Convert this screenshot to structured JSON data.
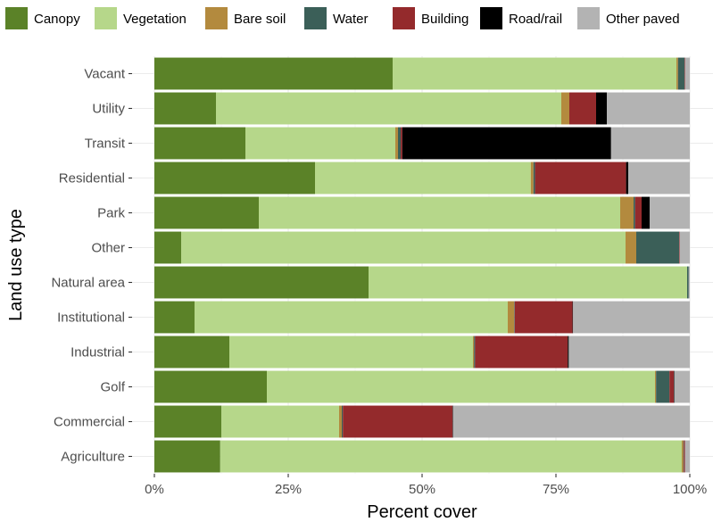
{
  "chart_data": {
    "type": "bar",
    "orientation": "horizontal",
    "stacked": true,
    "title": "",
    "xlabel": "Percent cover",
    "ylabel": "Land use type",
    "xlim": [
      0,
      100
    ],
    "x_ticks": [
      0,
      25,
      50,
      75,
      100
    ],
    "x_tick_labels": [
      "0%",
      "25%",
      "50%",
      "75%",
      "100%"
    ],
    "grid": true,
    "legend_position": "top",
    "categories": [
      "Vacant",
      "Utility",
      "Transit",
      "Residential",
      "Park",
      "Other",
      "Natural area",
      "Institutional",
      "Industrial",
      "Golf",
      "Commercial",
      "Agriculture"
    ],
    "series": [
      {
        "name": "Canopy",
        "color": "#5b8228",
        "values": [
          44.5,
          11.5,
          17.0,
          30.0,
          19.5,
          5.0,
          40.0,
          7.5,
          14.0,
          21.0,
          12.5,
          12.3
        ]
      },
      {
        "name": "Vegetation",
        "color": "#b6d78a",
        "values": [
          53.0,
          64.5,
          28.0,
          40.3,
          67.5,
          83.0,
          59.5,
          58.5,
          45.5,
          72.5,
          22.0,
          86.2
        ]
      },
      {
        "name": "Bare soil",
        "color": "#b38a3e",
        "values": [
          0.3,
          1.5,
          0.5,
          0.5,
          2.5,
          2.0,
          0.0,
          1.2,
          0.2,
          0.2,
          0.5,
          0.3
        ]
      },
      {
        "name": "Water",
        "color": "#3b5f58",
        "values": [
          1.2,
          0.0,
          0.5,
          0.3,
          0.3,
          8.0,
          0.3,
          0.1,
          0.2,
          2.5,
          0.2,
          0.1
        ]
      },
      {
        "name": "Building",
        "color": "#942a2c",
        "values": [
          0.1,
          5.0,
          0.3,
          17.0,
          1.2,
          0.1,
          0.0,
          10.8,
          17.3,
          0.8,
          20.5,
          0.2
        ]
      },
      {
        "name": "Road/rail",
        "color": "#000000",
        "values": [
          0.0,
          2.0,
          39.0,
          0.4,
          1.5,
          0.0,
          0.0,
          0.1,
          0.2,
          0.1,
          0.1,
          0.0
        ]
      },
      {
        "name": "Other paved",
        "color": "#b3b3b3",
        "values": [
          0.9,
          15.5,
          14.7,
          11.5,
          7.5,
          1.9,
          0.2,
          21.8,
          22.6,
          2.9,
          44.2,
          0.9
        ]
      }
    ]
  }
}
